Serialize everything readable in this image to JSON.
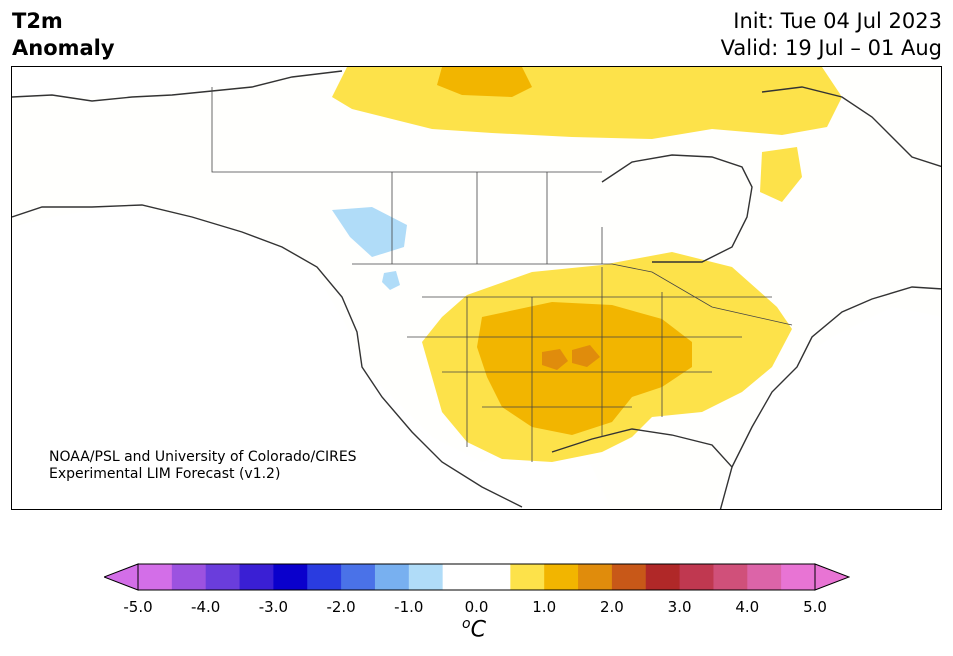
{
  "header": {
    "title_line1": "T2m",
    "title_line2": "Anomaly",
    "init": "Init: Tue 04 Jul 2023",
    "valid": "Valid: 19 Jul – 01 Aug"
  },
  "credit": {
    "line1": "NOAA/PSL and University of Colorado/CIRES",
    "line2": "Experimental LIM Forecast (v1.2)"
  },
  "colorbar": {
    "unit_base": "C",
    "unit_sup": "o",
    "ticks": [
      "-5.0",
      "-4.0",
      "-3.0",
      "-2.0",
      "-1.0",
      "0.0",
      "1.0",
      "2.0",
      "3.0",
      "4.0",
      "5.0"
    ],
    "colors": [
      "#d36ee8",
      "#9c52e0",
      "#6a3ddc",
      "#3a1fd4",
      "#0a00cc",
      "#2a3ce0",
      "#4a72e8",
      "#78b0f0",
      "#b0dcf8",
      "#ffffff",
      "#ffffff",
      "#fde24a",
      "#f2b500",
      "#e08c0c",
      "#c85818",
      "#b02828",
      "#c03850",
      "#d0507a",
      "#dc64a8",
      "#e874d4"
    ],
    "under_color": "#d36ee8",
    "over_color": "#e874d4"
  },
  "map": {
    "land_color": "#fffffd",
    "line_color": "#333333",
    "anomaly_colors": {
      "plus_0_5": "#fde24a",
      "plus_1_0": "#f2b500",
      "plus_1_5": "#e08c0c",
      "minus_0_5": "#b0dcf8"
    }
  }
}
